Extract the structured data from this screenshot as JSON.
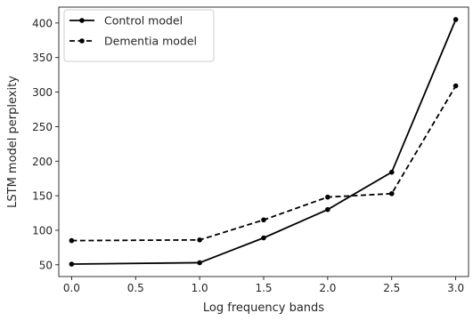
{
  "chart_data": {
    "type": "line",
    "title": "",
    "xlabel": "Log frequency bands",
    "ylabel": "LSTM model perplexity",
    "x": [
      0.0,
      1.0,
      1.5,
      2.0,
      2.5,
      3.0
    ],
    "xlim": [
      -0.1,
      3.1
    ],
    "ylim": [
      33,
      423
    ],
    "xticks": [
      0.0,
      0.5,
      1.0,
      1.5,
      2.0,
      2.5,
      3.0
    ],
    "xtick_labels": [
      "0.0",
      "0.5",
      "1.0",
      "1.5",
      "2.0",
      "2.5",
      "3.0"
    ],
    "yticks": [
      50,
      100,
      150,
      200,
      250,
      300,
      350,
      400
    ],
    "ytick_labels": [
      "50",
      "100",
      "150",
      "200",
      "250",
      "300",
      "350",
      "400"
    ],
    "grid": false,
    "legend_position": "top-left",
    "series": [
      {
        "name": "Control model",
        "style": "solid",
        "color": "#000000",
        "values": [
          51,
          53,
          89,
          130,
          184,
          405
        ]
      },
      {
        "name": "Dementia model",
        "style": "dashed",
        "color": "#000000",
        "values": [
          85,
          86,
          115,
          148,
          153,
          309
        ]
      }
    ]
  }
}
